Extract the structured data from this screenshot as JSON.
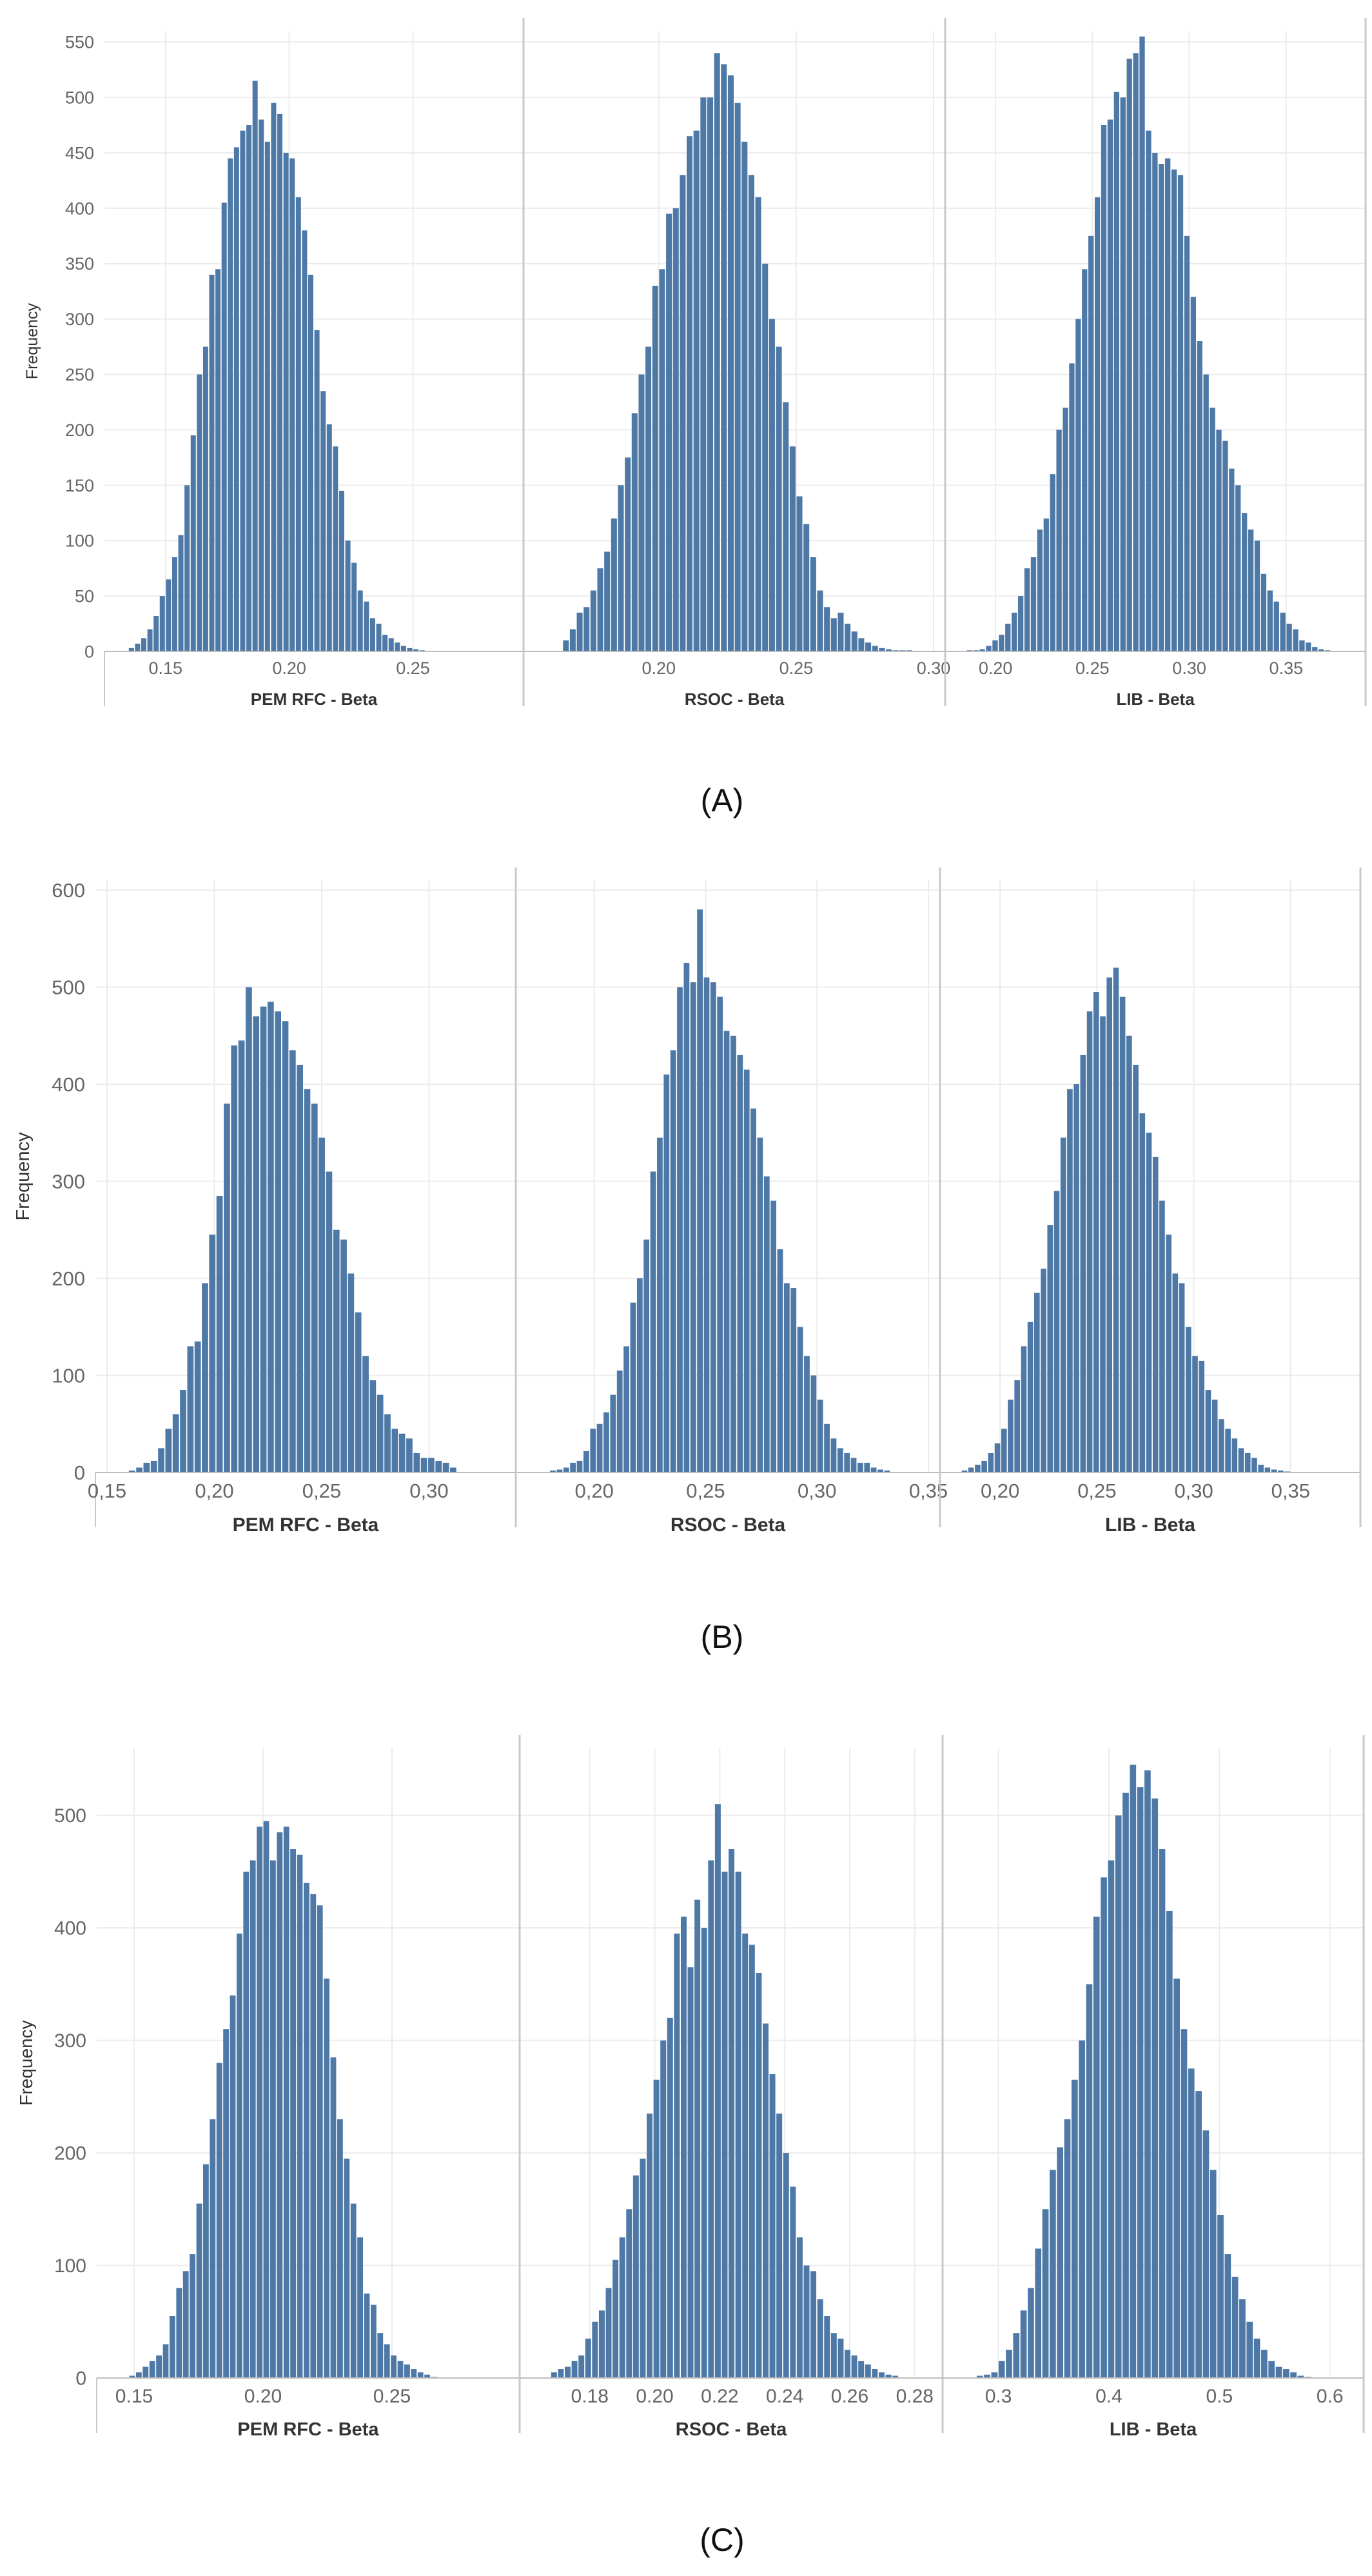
{
  "figure": {
    "captions": [
      "(A)",
      "(B)",
      "(C)"
    ]
  },
  "style": {
    "bar_color": "#4e79a7",
    "grid_color": "#ececec",
    "divider_color": "#c8c8c8"
  },
  "chart_data": [
    {
      "type": "bar",
      "panel": "(A)",
      "ylabel": "Frequency",
      "ylim": [
        0,
        560
      ],
      "yticks": [
        0,
        50,
        100,
        150,
        200,
        250,
        300,
        350,
        400,
        450,
        500,
        550
      ],
      "grid": true,
      "facets": [
        {
          "xlabel": "PEM RFC - Beta",
          "xlim": [
            0.13,
            0.29
          ],
          "xticks": [
            0.15,
            0.2,
            0.25
          ],
          "xtick_labels": [
            "0.15",
            "0.20",
            "0.25"
          ],
          "bin_start": 0.135,
          "bin_width": 0.0025,
          "values": [
            3,
            7,
            12,
            20,
            32,
            50,
            65,
            85,
            105,
            150,
            195,
            250,
            275,
            340,
            345,
            405,
            445,
            455,
            470,
            475,
            515,
            480,
            460,
            495,
            485,
            450,
            445,
            410,
            380,
            340,
            290,
            235,
            205,
            185,
            145,
            100,
            80,
            55,
            45,
            30,
            25,
            15,
            12,
            8,
            5,
            3,
            2,
            1
          ]
        },
        {
          "xlabel": "RSOC - Beta",
          "xlim": [
            0.155,
            0.3
          ],
          "xticks": [
            0.2,
            0.25,
            0.3
          ],
          "xtick_labels": [
            "0.20",
            "0.25",
            "0.30"
          ],
          "bin_start": 0.165,
          "bin_width": 0.0025,
          "values": [
            10,
            20,
            35,
            40,
            55,
            75,
            90,
            120,
            150,
            175,
            215,
            250,
            275,
            330,
            345,
            395,
            400,
            430,
            465,
            470,
            500,
            500,
            540,
            530,
            520,
            495,
            460,
            430,
            410,
            350,
            300,
            275,
            225,
            185,
            140,
            115,
            85,
            55,
            40,
            30,
            35,
            25,
            18,
            12,
            8,
            5,
            3,
            2,
            1,
            1,
            1
          ]
        },
        {
          "xlabel": "LIB - Beta",
          "xlim": [
            0.18,
            0.385
          ],
          "xticks": [
            0.2,
            0.25,
            0.3,
            0.35
          ],
          "xtick_labels": [
            "0.20",
            "0.25",
            "0.30",
            "0.35"
          ],
          "bin_start": 0.185,
          "bin_width": 0.0033,
          "values": [
            1,
            1,
            2,
            5,
            10,
            15,
            25,
            35,
            50,
            75,
            85,
            110,
            120,
            160,
            200,
            220,
            260,
            300,
            345,
            375,
            410,
            475,
            480,
            505,
            500,
            535,
            540,
            555,
            470,
            450,
            440,
            445,
            435,
            430,
            375,
            320,
            280,
            250,
            220,
            200,
            190,
            165,
            150,
            125,
            110,
            100,
            70,
            55,
            45,
            35,
            25,
            20,
            10,
            8,
            4,
            2,
            1
          ]
        }
      ]
    },
    {
      "type": "bar",
      "panel": "(B)",
      "ylabel": "Frequency",
      "ylim": [
        0,
        610
      ],
      "yticks": [
        0,
        100,
        200,
        300,
        400,
        500,
        600
      ],
      "grid": true,
      "facets": [
        {
          "xlabel": "PEM RFC - Beta",
          "xlim": [
            0.15,
            0.335
          ],
          "xticks": [
            0.15,
            0.2,
            0.25,
            0.3
          ],
          "xtick_labels": [
            "0,15",
            "0,20",
            "0,25",
            "0,30"
          ],
          "bin_start": 0.16,
          "bin_width": 0.0034,
          "values": [
            2,
            5,
            10,
            12,
            25,
            45,
            60,
            85,
            130,
            135,
            195,
            245,
            285,
            380,
            440,
            445,
            500,
            470,
            480,
            485,
            475,
            465,
            435,
            420,
            395,
            380,
            345,
            310,
            250,
            240,
            205,
            165,
            120,
            95,
            80,
            60,
            45,
            40,
            35,
            20,
            15,
            15,
            12,
            10,
            5
          ]
        },
        {
          "xlabel": "RSOC - Beta",
          "xlim": [
            0.17,
            0.35
          ],
          "xticks": [
            0.2,
            0.25,
            0.3,
            0.35
          ],
          "xtick_labels": [
            "0,20",
            "0,25",
            "0,30",
            "0,35"
          ],
          "bin_start": 0.18,
          "bin_width": 0.003,
          "values": [
            2,
            3,
            5,
            10,
            12,
            22,
            45,
            50,
            62,
            80,
            105,
            130,
            175,
            200,
            240,
            310,
            345,
            410,
            435,
            500,
            525,
            505,
            580,
            510,
            505,
            490,
            455,
            450,
            430,
            415,
            375,
            345,
            305,
            280,
            230,
            195,
            190,
            150,
            120,
            100,
            75,
            50,
            35,
            25,
            20,
            15,
            10,
            10,
            5,
            3,
            2
          ]
        },
        {
          "xlabel": "LIB - Beta",
          "xlim": [
            0.175,
            0.38
          ],
          "xticks": [
            0.2,
            0.25,
            0.3,
            0.35
          ],
          "xtick_labels": [
            "0,20",
            "0,25",
            "0,30",
            "0,35"
          ],
          "bin_start": 0.18,
          "bin_width": 0.0034,
          "values": [
            2,
            5,
            8,
            12,
            20,
            30,
            45,
            75,
            95,
            130,
            155,
            185,
            210,
            255,
            290,
            345,
            395,
            400,
            430,
            475,
            495,
            470,
            510,
            520,
            490,
            450,
            420,
            370,
            350,
            325,
            280,
            245,
            205,
            195,
            150,
            120,
            115,
            85,
            75,
            55,
            45,
            35,
            25,
            20,
            15,
            8,
            5,
            3,
            2,
            1
          ]
        }
      ]
    },
    {
      "type": "bar",
      "panel": "(C)",
      "ylabel": "Frequency",
      "ylim": [
        0,
        560
      ],
      "yticks": [
        0,
        100,
        200,
        300,
        400,
        500
      ],
      "grid": true,
      "facets": [
        {
          "xlabel": "PEM RFC - Beta",
          "xlim": [
            0.14,
            0.295
          ],
          "xticks": [
            0.15,
            0.2,
            0.25
          ],
          "xtick_labels": [
            "0.15",
            "0.20",
            "0.25"
          ],
          "bin_start": 0.148,
          "bin_width": 0.0026,
          "values": [
            2,
            5,
            10,
            15,
            20,
            30,
            55,
            80,
            95,
            110,
            155,
            190,
            230,
            280,
            310,
            340,
            395,
            450,
            460,
            490,
            495,
            460,
            485,
            490,
            470,
            465,
            440,
            430,
            420,
            355,
            285,
            230,
            195,
            155,
            125,
            75,
            65,
            40,
            30,
            20,
            15,
            12,
            8,
            5,
            3,
            1
          ]
        },
        {
          "xlabel": "RSOC - Beta",
          "xlim": [
            0.162,
            0.285
          ],
          "xticks": [
            0.18,
            0.2,
            0.22,
            0.24,
            0.26,
            0.28
          ],
          "xtick_labels": [
            "0.18",
            "0.20",
            "0.22",
            "0.24",
            "0.26",
            "0.28"
          ],
          "bin_start": 0.168,
          "bin_width": 0.0021,
          "values": [
            5,
            8,
            10,
            15,
            20,
            35,
            50,
            60,
            80,
            105,
            125,
            150,
            180,
            195,
            235,
            265,
            300,
            320,
            395,
            410,
            365,
            425,
            400,
            460,
            510,
            450,
            470,
            450,
            395,
            385,
            360,
            315,
            270,
            235,
            200,
            170,
            125,
            100,
            95,
            70,
            55,
            40,
            35,
            25,
            20,
            15,
            12,
            8,
            5,
            3,
            2
          ]
        },
        {
          "xlabel": "LIB - Beta",
          "xlim": [
            0.26,
            0.62
          ],
          "xticks": [
            0.3,
            0.4,
            0.5,
            0.6
          ],
          "xtick_labels": [
            "0.3",
            "0.4",
            "0.5",
            "0.6"
          ],
          "bin_start": 0.28,
          "bin_width": 0.0066,
          "values": [
            2,
            3,
            5,
            15,
            25,
            40,
            60,
            80,
            115,
            150,
            185,
            205,
            230,
            265,
            300,
            350,
            410,
            445,
            460,
            500,
            520,
            545,
            525,
            540,
            515,
            470,
            415,
            355,
            310,
            275,
            255,
            220,
            185,
            145,
            110,
            90,
            70,
            50,
            35,
            25,
            15,
            10,
            8,
            5,
            2,
            1
          ]
        }
      ]
    }
  ]
}
